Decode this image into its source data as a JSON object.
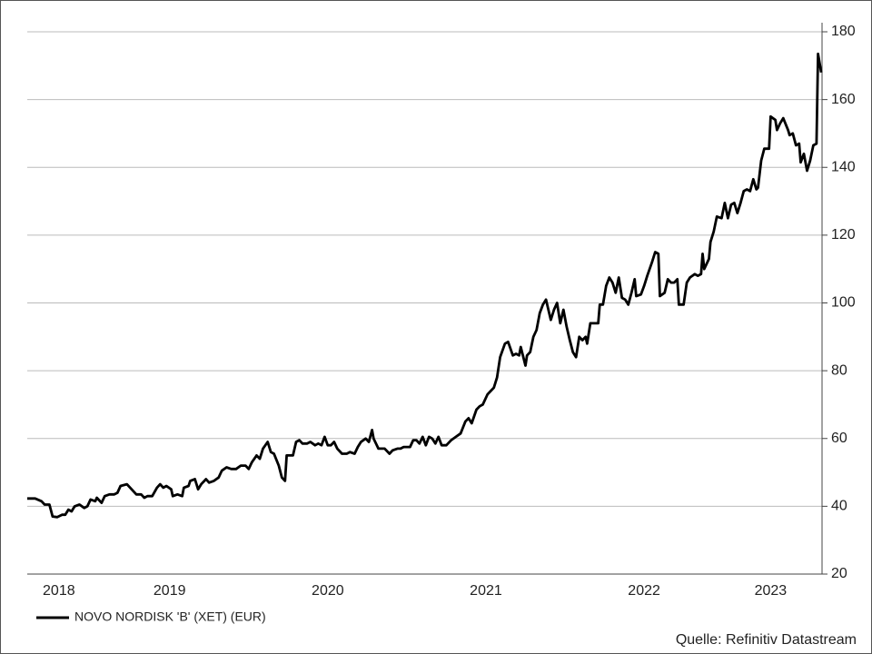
{
  "chart_data": {
    "type": "line",
    "x": [
      2018.1,
      2018.15,
      2018.19,
      2018.21,
      2018.24,
      2018.26,
      2018.29,
      2018.32,
      2018.34,
      2018.36,
      2018.38,
      2018.4,
      2018.43,
      2018.46,
      2018.48,
      2018.5,
      2018.53,
      2018.54,
      2018.57,
      2018.59,
      2018.62,
      2018.65,
      2018.67,
      2018.69,
      2018.73,
      2018.76,
      2018.79,
      2018.82,
      2018.84,
      2018.86,
      2018.89,
      2018.92,
      2018.94,
      2018.96,
      2018.98,
      2019.01,
      2019.02,
      2019.05,
      2019.08,
      2019.09,
      2019.12,
      2019.13,
      2019.16,
      2019.18,
      2019.2,
      2019.23,
      2019.25,
      2019.28,
      2019.31,
      2019.33,
      2019.36,
      2019.39,
      2019.42,
      2019.45,
      2019.48,
      2019.5,
      2019.52,
      2019.55,
      2019.57,
      2019.59,
      2019.62,
      2019.64,
      2019.66,
      2019.69,
      2019.71,
      2019.73,
      2019.74,
      2019.77,
      2019.78,
      2019.8,
      2019.82,
      2019.84,
      2019.87,
      2019.89,
      2019.92,
      2019.94,
      2019.96,
      2019.98,
      2020.0,
      2020.02,
      2020.04,
      2020.06,
      2020.09,
      2020.12,
      2020.14,
      2020.17,
      2020.19,
      2020.21,
      2020.24,
      2020.26,
      2020.28,
      2020.29,
      2020.32,
      2020.34,
      2020.36,
      2020.39,
      2020.41,
      2020.44,
      2020.46,
      2020.48,
      2020.5,
      2020.52,
      2020.54,
      2020.56,
      2020.58,
      2020.6,
      2020.62,
      2020.64,
      2020.66,
      2020.68,
      2020.7,
      2020.72,
      2020.75,
      2020.78,
      2020.81,
      2020.84,
      2020.87,
      2020.89,
      2020.91,
      2020.94,
      2020.96,
      2020.98,
      2021.01,
      2021.03,
      2021.05,
      2021.07,
      2021.09,
      2021.12,
      2021.14,
      2021.17,
      2021.19,
      2021.21,
      2021.22,
      2021.25,
      2021.26,
      2021.28,
      2021.3,
      2021.32,
      2021.34,
      2021.36,
      2021.38,
      2021.4,
      2021.41,
      2021.43,
      2021.45,
      2021.47,
      2021.49,
      2021.51,
      2021.53,
      2021.55,
      2021.57,
      2021.59,
      2021.61,
      2021.63,
      2021.64,
      2021.66,
      2021.68,
      2021.71,
      2021.72,
      2021.74,
      2021.76,
      2021.78,
      2021.8,
      2021.82,
      2021.84,
      2021.86,
      2021.88,
      2021.9,
      2021.92,
      2021.94,
      2021.95,
      2021.98,
      2022.0,
      2022.02,
      2022.05,
      2022.07,
      2022.09,
      2022.1,
      2022.13,
      2022.15,
      2022.17,
      2022.19,
      2022.21,
      2022.22,
      2022.25,
      2022.27,
      2022.29,
      2022.32,
      2022.34,
      2022.36,
      2022.37,
      2022.38,
      2022.41,
      2022.42,
      2022.44,
      2022.46,
      2022.49,
      2022.51,
      2022.53,
      2022.55,
      2022.57,
      2022.59,
      2022.61,
      2022.63,
      2022.65,
      2022.67,
      2022.69,
      2022.71,
      2022.72,
      2022.74,
      2022.76,
      2022.79,
      2022.8,
      2022.83,
      2022.84,
      2022.86,
      2022.88,
      2022.91,
      2022.92,
      2022.94,
      2022.96,
      2022.98,
      2022.99,
      2023.01,
      2023.03,
      2023.05,
      2023.07,
      2023.09,
      2023.1,
      2023.12
    ],
    "series": [
      {
        "name": "NOVO NORDISK 'B' (XET) (EUR)",
        "color": "#000000",
        "values": [
          42.3,
          42.3,
          41.5,
          40.5,
          40.5,
          37,
          36.8,
          37.5,
          37.5,
          39,
          38.5,
          40,
          40.5,
          39.5,
          40,
          42,
          41.5,
          42.5,
          41,
          43,
          43.5,
          43.5,
          44,
          46,
          46.5,
          45,
          43.5,
          43.5,
          42.5,
          43,
          43,
          45.5,
          46.5,
          45.5,
          46,
          45,
          43,
          43.5,
          43,
          45.5,
          46,
          47.5,
          48,
          45,
          46.5,
          48,
          47,
          47.5,
          48.5,
          50.5,
          51.5,
          51,
          51,
          52,
          52,
          51,
          53,
          55,
          54,
          57,
          59,
          56,
          55.5,
          52,
          48.5,
          47.5,
          55,
          55,
          55,
          59,
          59.5,
          58.5,
          58.5,
          59,
          58,
          58.5,
          58,
          60.5,
          58,
          58,
          59,
          57,
          55.5,
          55.5,
          56,
          55.5,
          57.5,
          59,
          60,
          59,
          62.5,
          60,
          57,
          57,
          57,
          55.5,
          56.5,
          57,
          57,
          57.5,
          57.5,
          57.5,
          59.5,
          59.5,
          58.5,
          60.5,
          58,
          60.5,
          60,
          58.5,
          60.5,
          58,
          58,
          59.5,
          60.5,
          61.5,
          65,
          66,
          64.5,
          68.5,
          69.5,
          70,
          73,
          74,
          75,
          78,
          84,
          88,
          88.5,
          84.5,
          85,
          84.5,
          87,
          81.5,
          84.5,
          85.5,
          90,
          92,
          97,
          99.5,
          101,
          97,
          95,
          98,
          100,
          94,
          98,
          93,
          89,
          85.5,
          84,
          90,
          89,
          90,
          88,
          94,
          94,
          94,
          99.5,
          99.5,
          105,
          107.5,
          106,
          103,
          107.5,
          101.5,
          101,
          99.5,
          103,
          107,
          102,
          102.5,
          105,
          108,
          112,
          115,
          114.5,
          102,
          103,
          107,
          106,
          106,
          107,
          99.5,
          99.5,
          106,
          107.5,
          108.5,
          108,
          108.5,
          114.5,
          110,
          113,
          118,
          121,
          125.5,
          125,
          129.5,
          125,
          129,
          129.5,
          126.5,
          129.5,
          133,
          133.5,
          133,
          136.5,
          133.5,
          134,
          142,
          145.5,
          145.5,
          155,
          154,
          151,
          153,
          154.5,
          151,
          149.5,
          150,
          146.5,
          147,
          141.5,
          144,
          139,
          142,
          146.5,
          147,
          173.5,
          168
        ]
      }
    ],
    "xlim": [
      2018.1,
      2023.125
    ],
    "xticks": [
      {
        "value": 2018.3,
        "label": "2018"
      },
      2019,
      2020,
      2021,
      2022,
      {
        "value": 2022.8,
        "label": "2023"
      }
    ],
    "ylim": [
      20,
      180
    ],
    "yticks": [
      20,
      40,
      60,
      80,
      100,
      120,
      140,
      160,
      180
    ],
    "grid": true,
    "legend": "bottom-left",
    "source": "Quelle: Refinitiv Datastream"
  }
}
